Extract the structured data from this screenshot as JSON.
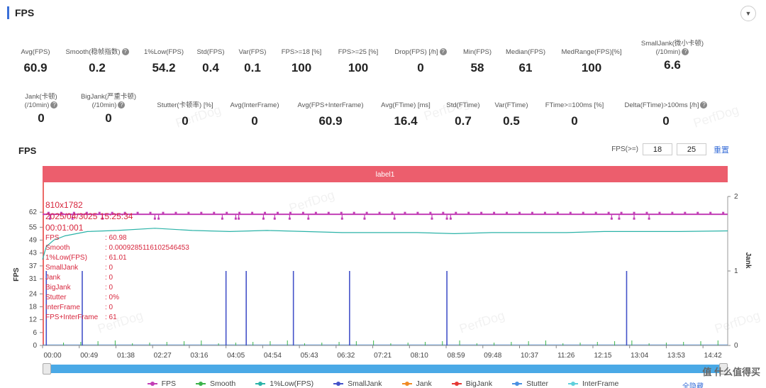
{
  "header": {
    "title": "FPS"
  },
  "metrics_row1": [
    {
      "label": "Avg(FPS)",
      "value": "60.9",
      "help": false
    },
    {
      "label": "Smooth(稳帧指数)",
      "value": "0.2",
      "help": true
    },
    {
      "label": "1%Low(FPS)",
      "value": "54.2",
      "help": false
    },
    {
      "label": "Std(FPS)",
      "value": "0.4",
      "help": false
    },
    {
      "label": "Var(FPS)",
      "value": "0.1",
      "help": false
    },
    {
      "label": "FPS>=18 [%]",
      "value": "100",
      "help": false
    },
    {
      "label": "FPS>=25 [%]",
      "value": "100",
      "help": false
    },
    {
      "label": "Drop(FPS) [/h]",
      "value": "0",
      "help": true
    },
    {
      "label": "Min(FPS)",
      "value": "58",
      "help": false
    },
    {
      "label": "Median(FPS)",
      "value": "61",
      "help": false
    },
    {
      "label": "MedRange(FPS)[%]",
      "value": "100",
      "help": false
    },
    {
      "label": "SmallJank(微小卡顿)",
      "label2": "(/10min)",
      "value": "6.6",
      "help": true
    }
  ],
  "metrics_row2": [
    {
      "label": "Jank(卡顿)",
      "label2": "(/10min)",
      "value": "0",
      "help": true
    },
    {
      "label": "BigJank(严重卡顿)",
      "label2": "(/10min)",
      "value": "0",
      "help": true
    },
    {
      "label": "Stutter(卡顿率) [%]",
      "value": "0",
      "help": false
    },
    {
      "label": "Avg(InterFrame)",
      "value": "0",
      "help": false
    },
    {
      "label": "Avg(FPS+InterFrame)",
      "value": "60.9",
      "help": false
    },
    {
      "label": "Avg(FTime) [ms]",
      "value": "16.4",
      "help": false
    },
    {
      "label": "Std(FTime)",
      "value": "0.7",
      "help": false
    },
    {
      "label": "Var(FTime)",
      "value": "0.5",
      "help": false
    },
    {
      "label": "FTime>=100ms [%]",
      "value": "0",
      "help": false
    },
    {
      "label": "Delta(FTime)>100ms [/h]",
      "value": "0",
      "help": true
    }
  ],
  "watermark": "PerfDog",
  "chart_section": {
    "title": "FPS",
    "filter_label": "FPS(>=)",
    "filter_low": "18",
    "filter_high": "25",
    "reset_label": "重置",
    "band_label": "label1",
    "hide_all_label": "全隐藏",
    "brand": "值 什么值得买"
  },
  "tooltip": {
    "resolution": "810x1782",
    "datetime": "2025/04/3025 15:25:34",
    "elapsed": "00:01:001",
    "rows": [
      {
        "k": "FPS",
        "v": ": 60.98"
      },
      {
        "k": "Smooth",
        "v": ": 0.0009285116102546453"
      },
      {
        "k": "1%Low(FPS)",
        "v": ": 61.01"
      },
      {
        "k": "SmallJank",
        "v": ": 0"
      },
      {
        "k": "Jank",
        "v": ": 0"
      },
      {
        "k": "BigJank",
        "v": ": 0"
      },
      {
        "k": "Stutter",
        "v": ": 0%"
      },
      {
        "k": "InterFrame",
        "v": ": 0"
      },
      {
        "k": "FPS+InterFrame",
        "v": ": 61"
      }
    ]
  },
  "chart_data": {
    "type": "line",
    "xlabel": "",
    "ylabel": "FPS",
    "y2label": "Jank",
    "x_tick_labels": [
      "00:00",
      "00:49",
      "01:38",
      "02:27",
      "03:16",
      "04:05",
      "04:54",
      "05:43",
      "06:32",
      "07:21",
      "08:10",
      "08:59",
      "09:48",
      "10:37",
      "11:26",
      "12:15",
      "13:04",
      "13:53",
      "14:42"
    ],
    "x_tick_seconds": [
      0,
      49,
      98,
      147,
      196,
      245,
      294,
      343,
      392,
      441,
      490,
      539,
      588,
      637,
      686,
      735,
      784,
      833,
      882
    ],
    "xlim_seconds": [
      0,
      915
    ],
    "y_ticks": [
      0,
      6,
      12,
      18,
      24,
      31,
      37,
      43,
      49,
      55,
      62
    ],
    "ylim": [
      0,
      66
    ],
    "y2_ticks": [
      0,
      1,
      2
    ],
    "y2lim": [
      0,
      2
    ],
    "legend_position": "bottom",
    "series": [
      {
        "name": "FPS",
        "color": "#c23fb6",
        "baseline": 61,
        "dips_at_seconds": [
          10,
          40,
          80,
          150,
          155,
          240,
          258,
          262,
          295,
          310,
          330,
          355,
          400,
          430,
          470,
          520,
          540,
          545,
          760,
          770,
          790,
          810
        ],
        "dip_value": 59
      },
      {
        "name": "Smooth",
        "color": "#3bb34a"
      },
      {
        "name": "1%Low(FPS)",
        "color": "#2bb3a8",
        "x": [
          0,
          5,
          15,
          30,
          60,
          100,
          150,
          200,
          250,
          300,
          350,
          400,
          450,
          500,
          550,
          600,
          650,
          700,
          750,
          800,
          850,
          915
        ],
        "y": [
          40,
          46,
          49,
          51,
          53,
          53.5,
          54.5,
          53.5,
          53,
          53.5,
          53,
          52.5,
          52.5,
          52.5,
          52,
          52.5,
          52.5,
          52.5,
          53,
          53,
          53,
          53.3
        ]
      },
      {
        "name": "SmallJank",
        "color": "#4452c9",
        "spikes_at_seconds": [
          5,
          53,
          245,
          272,
          335,
          410,
          540,
          780
        ],
        "spike_value": 1
      },
      {
        "name": "Jank",
        "color": "#f08a24"
      },
      {
        "name": "BigJank",
        "color": "#e53935"
      },
      {
        "name": "Stutter",
        "color": "#4a90e2"
      },
      {
        "name": "InterFrame",
        "color": "#5fd0dc"
      }
    ]
  }
}
